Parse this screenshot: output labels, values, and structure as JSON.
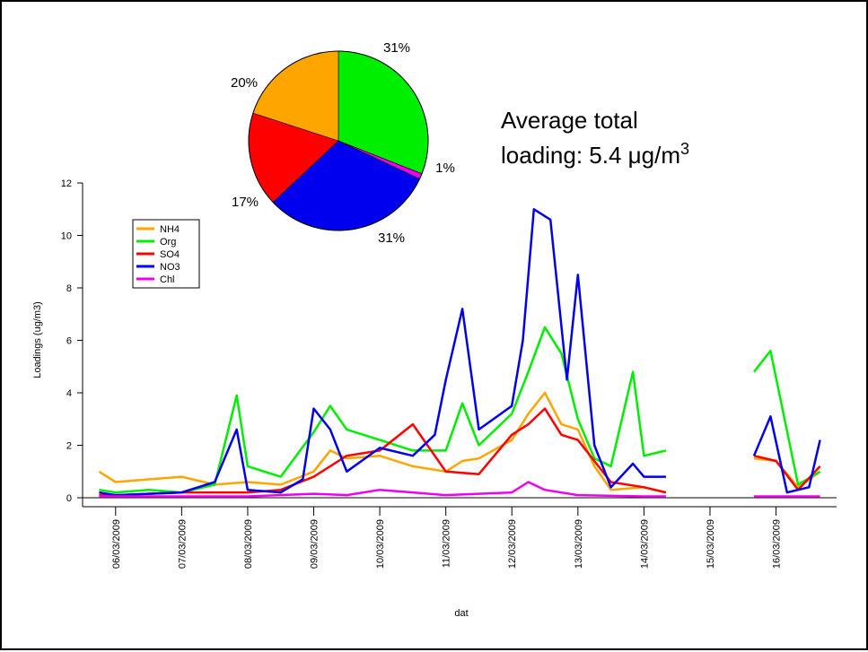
{
  "chart_data": [
    {
      "type": "line",
      "xlabel": "dat",
      "ylabel": "Loadings (ug/m3)",
      "ylim": [
        0,
        12
      ],
      "yticks": [
        0,
        2,
        4,
        6,
        8,
        10,
        12
      ],
      "x_tick_labels": [
        "06/03/2009",
        "07/03/2009",
        "08/03/2009",
        "09/03/2009",
        "10/03/2009",
        "11/03/2009",
        "12/03/2009",
        "13/03/2009",
        "14/03/2009",
        "15/03/2009",
        "16/03/2009"
      ],
      "legend_position": "upper-left",
      "series": [
        {
          "name": "NH4",
          "color": "#ffa500",
          "x": [
            "2009-03-05T18:00",
            "2009-03-06T00:00",
            "2009-03-06T12:00",
            "2009-03-07T00:00",
            "2009-03-07T12:00",
            "2009-03-08T00:00",
            "2009-03-08T12:00",
            "2009-03-09T00:00",
            "2009-03-09T06:00",
            "2009-03-09T12:00",
            "2009-03-10T00:00",
            "2009-03-10T12:00",
            "2009-03-11T00:00",
            "2009-03-11T06:00",
            "2009-03-11T12:00",
            "2009-03-12T00:00",
            "2009-03-12T06:00",
            "2009-03-12T12:00",
            "2009-03-12T18:00",
            "2009-03-13T00:00",
            "2009-03-13T06:00",
            "2009-03-13T12:00",
            "2009-03-14T00:00",
            "2009-03-14T08:00",
            null,
            "2009-03-15T16:00",
            "2009-03-16T00:00",
            "2009-03-16T08:00",
            "2009-03-16T16:00"
          ],
          "y": [
            1.0,
            0.6,
            0.7,
            0.8,
            0.5,
            0.6,
            0.5,
            1.0,
            1.8,
            1.5,
            1.6,
            1.2,
            1.0,
            1.4,
            1.5,
            2.2,
            3.2,
            4.0,
            2.8,
            2.6,
            1.2,
            0.3,
            0.4,
            0.2,
            null,
            1.5,
            1.4,
            0.4,
            1.0
          ]
        },
        {
          "name": "Org",
          "color": "#00ee00",
          "x": [
            "2009-03-05T18:00",
            "2009-03-06T00:00",
            "2009-03-06T12:00",
            "2009-03-07T00:00",
            "2009-03-07T12:00",
            "2009-03-07T20:00",
            "2009-03-08T00:00",
            "2009-03-08T12:00",
            "2009-03-09T00:00",
            "2009-03-09T06:00",
            "2009-03-09T12:00",
            "2009-03-10T00:00",
            "2009-03-10T12:00",
            "2009-03-11T00:00",
            "2009-03-11T06:00",
            "2009-03-11T12:00",
            "2009-03-12T00:00",
            "2009-03-12T06:00",
            "2009-03-12T12:00",
            "2009-03-12T18:00",
            "2009-03-13T00:00",
            "2009-03-13T06:00",
            "2009-03-13T12:00",
            "2009-03-13T20:00",
            "2009-03-14T00:00",
            "2009-03-14T08:00",
            null,
            "2009-03-15T16:00",
            "2009-03-15T22:00",
            "2009-03-16T08:00",
            "2009-03-16T16:00"
          ],
          "y": [
            0.3,
            0.2,
            0.3,
            0.2,
            0.5,
            3.9,
            1.2,
            0.8,
            2.5,
            3.5,
            2.6,
            2.2,
            1.8,
            1.8,
            3.6,
            2.0,
            3.2,
            4.8,
            6.5,
            5.5,
            3.0,
            1.5,
            1.2,
            4.8,
            1.6,
            1.8,
            null,
            4.8,
            5.6,
            0.5,
            1.0
          ]
        },
        {
          "name": "SO4",
          "color": "#ff0000",
          "x": [
            "2009-03-05T18:00",
            "2009-03-06T00:00",
            "2009-03-07T00:00",
            "2009-03-08T00:00",
            "2009-03-08T12:00",
            "2009-03-09T00:00",
            "2009-03-09T12:00",
            "2009-03-10T00:00",
            "2009-03-10T12:00",
            "2009-03-11T00:00",
            "2009-03-11T12:00",
            "2009-03-12T00:00",
            "2009-03-12T06:00",
            "2009-03-12T12:00",
            "2009-03-12T18:00",
            "2009-03-13T00:00",
            "2009-03-13T12:00",
            "2009-03-14T00:00",
            "2009-03-14T08:00",
            null,
            "2009-03-15T16:00",
            "2009-03-16T00:00",
            "2009-03-16T08:00",
            "2009-03-16T16:00"
          ],
          "y": [
            0.1,
            0.1,
            0.2,
            0.2,
            0.3,
            0.8,
            1.6,
            1.8,
            2.8,
            1.0,
            0.9,
            2.4,
            2.8,
            3.4,
            2.4,
            2.2,
            0.6,
            0.4,
            0.2,
            null,
            1.6,
            1.4,
            0.3,
            1.2
          ]
        },
        {
          "name": "NO3",
          "color": "#0000ee",
          "x": [
            "2009-03-05T18:00",
            "2009-03-06T00:00",
            "2009-03-07T00:00",
            "2009-03-07T12:00",
            "2009-03-07T20:00",
            "2009-03-08T00:00",
            "2009-03-08T12:00",
            "2009-03-08T20:00",
            "2009-03-09T00:00",
            "2009-03-09T06:00",
            "2009-03-09T12:00",
            "2009-03-10T00:00",
            "2009-03-10T12:00",
            "2009-03-10T20:00",
            "2009-03-11T00:00",
            "2009-03-11T06:00",
            "2009-03-11T12:00",
            "2009-03-12T00:00",
            "2009-03-12T04:00",
            "2009-03-12T08:00",
            "2009-03-12T14:00",
            "2009-03-12T20:00",
            "2009-03-13T00:00",
            "2009-03-13T06:00",
            "2009-03-13T12:00",
            "2009-03-13T20:00",
            "2009-03-14T00:00",
            "2009-03-14T08:00",
            null,
            "2009-03-15T16:00",
            "2009-03-15T22:00",
            "2009-03-16T04:00",
            "2009-03-16T12:00",
            "2009-03-16T16:00"
          ],
          "y": [
            0.2,
            0.1,
            0.2,
            0.6,
            2.6,
            0.3,
            0.2,
            0.7,
            3.4,
            2.6,
            1.0,
            1.9,
            1.6,
            2.4,
            4.5,
            7.2,
            2.6,
            3.5,
            6.0,
            11.0,
            10.6,
            4.5,
            8.5,
            2.0,
            0.4,
            1.3,
            0.8,
            0.8,
            null,
            1.6,
            3.1,
            0.2,
            0.4,
            2.2
          ]
        },
        {
          "name": "Chl",
          "color": "#ee00ee",
          "x": [
            "2009-03-05T18:00",
            "2009-03-07T00:00",
            "2009-03-08T00:00",
            "2009-03-09T00:00",
            "2009-03-09T12:00",
            "2009-03-10T00:00",
            "2009-03-10T12:00",
            "2009-03-11T00:00",
            "2009-03-11T12:00",
            "2009-03-12T00:00",
            "2009-03-12T06:00",
            "2009-03-12T12:00",
            "2009-03-13T00:00",
            "2009-03-14T00:00",
            "2009-03-14T08:00",
            null,
            "2009-03-15T16:00",
            "2009-03-16T16:00"
          ],
          "y": [
            0.05,
            0.05,
            0.05,
            0.15,
            0.1,
            0.3,
            0.2,
            0.1,
            0.15,
            0.2,
            0.6,
            0.3,
            0.1,
            0.05,
            0.05,
            null,
            0.05,
            0.05
          ]
        }
      ]
    },
    {
      "type": "pie",
      "slices": [
        {
          "label": "31%",
          "value": 31,
          "color": "#00ee00"
        },
        {
          "label": "1%",
          "value": 1,
          "color": "#ee00ee"
        },
        {
          "label": "31%",
          "value": 31,
          "color": "#0000ee"
        },
        {
          "label": "17%",
          "value": 17,
          "color": "#ff0000"
        },
        {
          "label": "20%",
          "value": 20,
          "color": "#ffa500"
        }
      ]
    }
  ],
  "annotation": {
    "line1": "Average total",
    "line2_prefix": "loading: 5.4 ",
    "line2_unit": "μg/m",
    "line2_sup": "3"
  }
}
